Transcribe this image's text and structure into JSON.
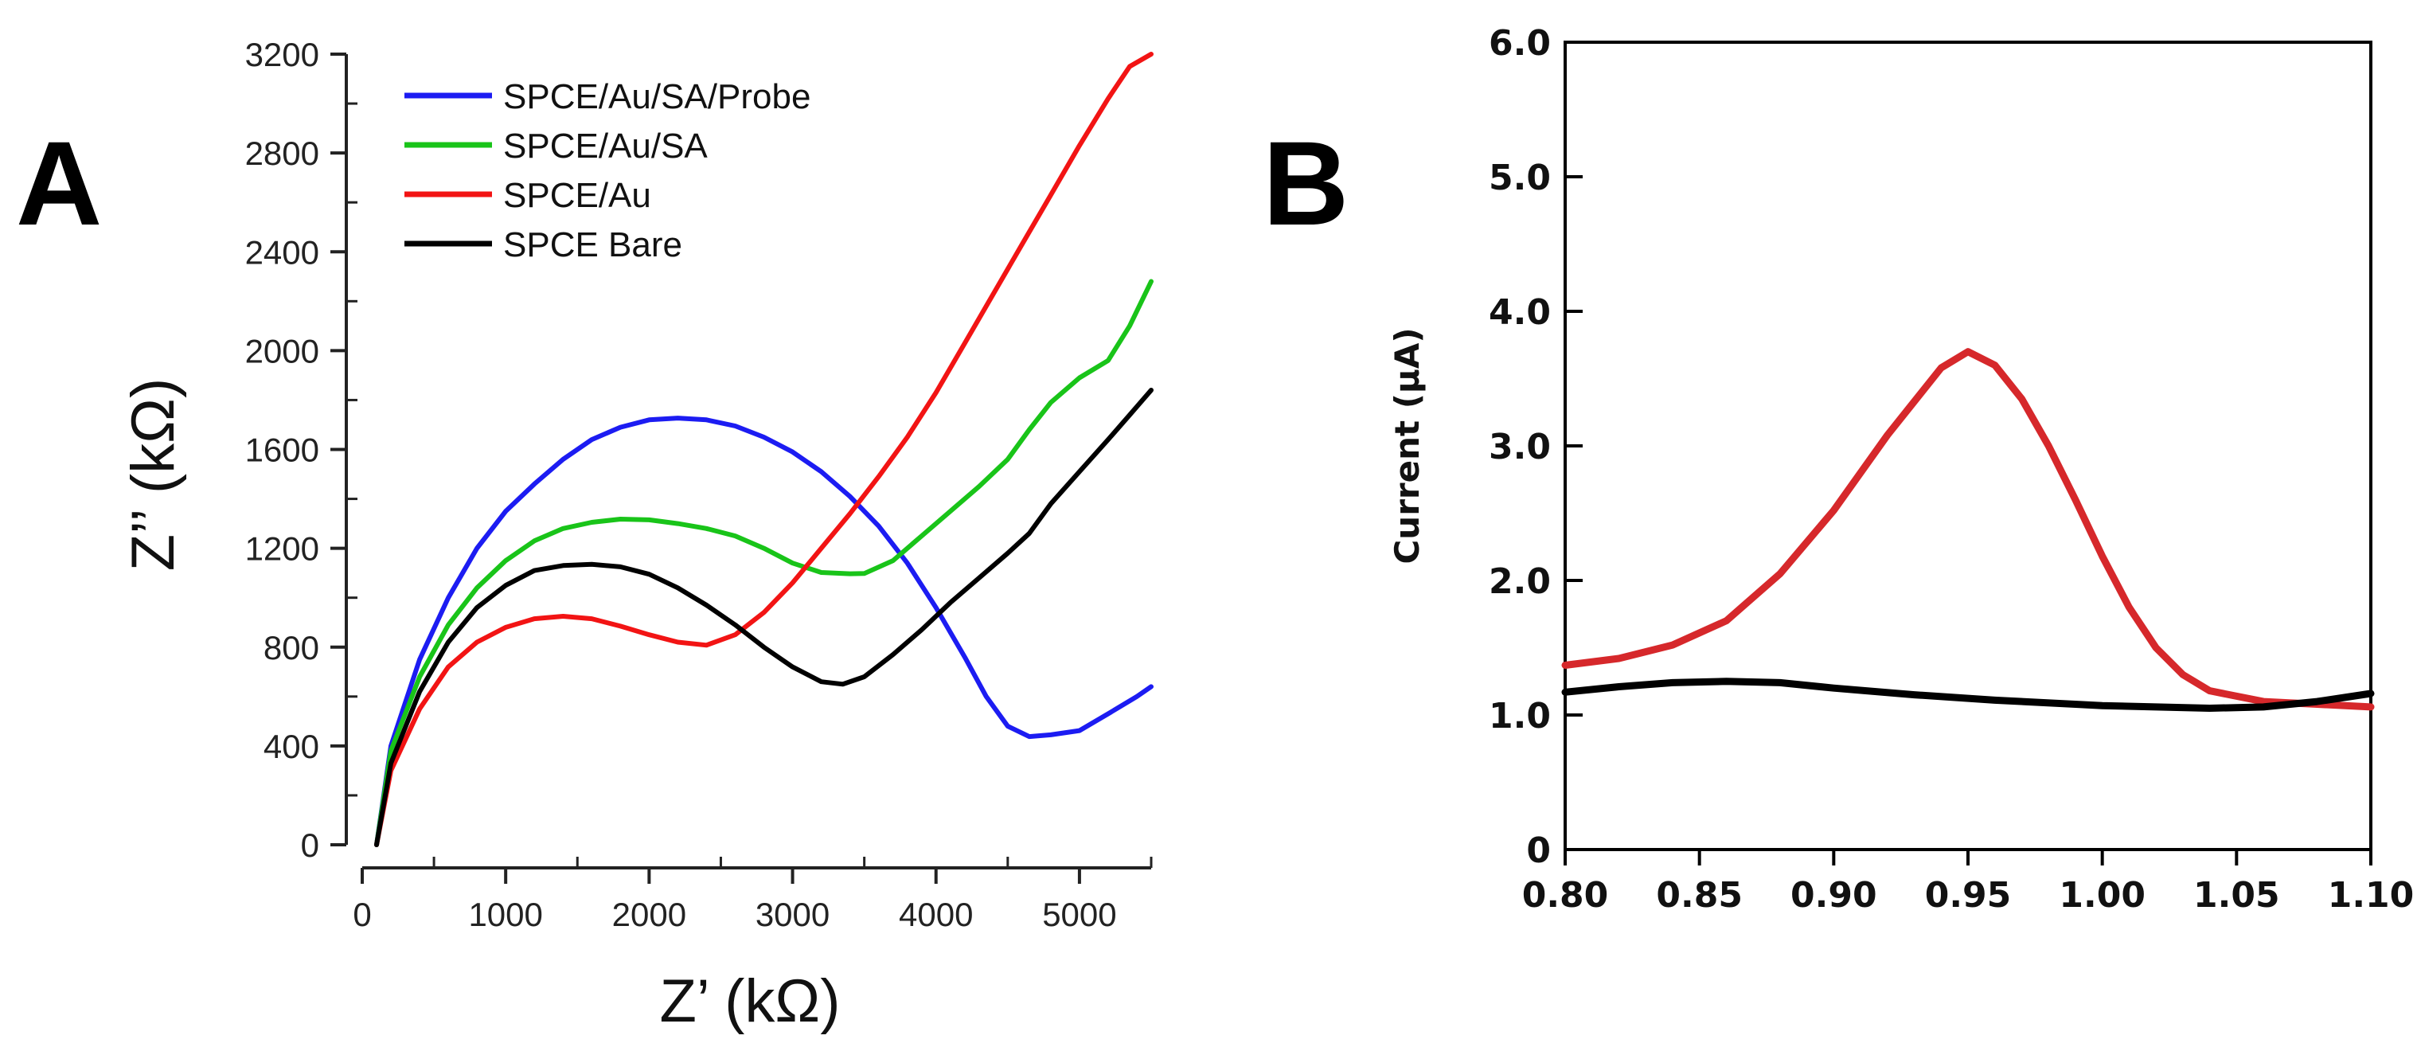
{
  "chart_data": [
    {
      "panel_label": "A",
      "type": "line",
      "title": "",
      "xlabel": "Z’ (kΩ)",
      "ylabel": "Z’’ (kΩ)",
      "xlim": [
        0,
        5500
      ],
      "ylim": [
        0,
        3200
      ],
      "x_ticks": [
        0,
        1000,
        2000,
        3000,
        4000,
        5000
      ],
      "x_tick_labels": [
        "0",
        "1000",
        "2000",
        "3000",
        "4000",
        "5000"
      ],
      "x_minor_step": 500,
      "y_ticks": [
        0,
        400,
        800,
        1200,
        1600,
        2000,
        2400,
        2800,
        3200
      ],
      "y_tick_labels": [
        "0",
        "400",
        "800",
        "1200",
        "1600",
        "2000",
        "2400",
        "2800",
        "3200"
      ],
      "y_minor_step": 200,
      "grid": false,
      "legend_position": "top-left",
      "series": [
        {
          "name": "SPCE/Au/SA/Probe",
          "color": "#1c1cf2",
          "points": [
            [
              100,
              0
            ],
            [
              200,
              400
            ],
            [
              400,
              750
            ],
            [
              600,
              1000
            ],
            [
              800,
              1200
            ],
            [
              1000,
              1350
            ],
            [
              1200,
              1460
            ],
            [
              1400,
              1560
            ],
            [
              1600,
              1640
            ],
            [
              1800,
              1690
            ],
            [
              2000,
              1720
            ],
            [
              2200,
              1727
            ],
            [
              2400,
              1720
            ],
            [
              2600,
              1695
            ],
            [
              2800,
              1650
            ],
            [
              3000,
              1590
            ],
            [
              3200,
              1510
            ],
            [
              3400,
              1410
            ],
            [
              3600,
              1290
            ],
            [
              3800,
              1140
            ],
            [
              4000,
              960
            ],
            [
              4200,
              760
            ],
            [
              4350,
              600
            ],
            [
              4500,
              480
            ],
            [
              4650,
              438
            ],
            [
              4800,
              445
            ],
            [
              5000,
              462
            ],
            [
              5200,
              530
            ],
            [
              5400,
              600
            ],
            [
              5500,
              640
            ]
          ]
        },
        {
          "name": "SPCE/Au/SA",
          "color": "#19c419",
          "points": [
            [
              100,
              0
            ],
            [
              200,
              380
            ],
            [
              400,
              680
            ],
            [
              600,
              890
            ],
            [
              800,
              1040
            ],
            [
              1000,
              1150
            ],
            [
              1200,
              1230
            ],
            [
              1400,
              1280
            ],
            [
              1600,
              1305
            ],
            [
              1800,
              1318
            ],
            [
              2000,
              1315
            ],
            [
              2200,
              1300
            ],
            [
              2400,
              1280
            ],
            [
              2600,
              1250
            ],
            [
              2800,
              1200
            ],
            [
              3000,
              1140
            ],
            [
              3200,
              1102
            ],
            [
              3400,
              1097
            ],
            [
              3500,
              1098
            ],
            [
              3700,
              1150
            ],
            [
              3900,
              1250
            ],
            [
              4100,
              1350
            ],
            [
              4300,
              1450
            ],
            [
              4500,
              1560
            ],
            [
              4650,
              1680
            ],
            [
              4800,
              1790
            ],
            [
              5000,
              1890
            ],
            [
              5200,
              1960
            ],
            [
              5350,
              2100
            ],
            [
              5500,
              2280
            ]
          ]
        },
        {
          "name": "SPCE/Au",
          "color": "#f21414",
          "points": [
            [
              100,
              0
            ],
            [
              200,
              300
            ],
            [
              400,
              550
            ],
            [
              600,
              720
            ],
            [
              800,
              820
            ],
            [
              1000,
              880
            ],
            [
              1200,
              915
            ],
            [
              1400,
              925
            ],
            [
              1600,
              915
            ],
            [
              1800,
              885
            ],
            [
              2000,
              850
            ],
            [
              2200,
              820
            ],
            [
              2400,
              808
            ],
            [
              2600,
              850
            ],
            [
              2800,
              940
            ],
            [
              3000,
              1060
            ],
            [
              3200,
              1200
            ],
            [
              3400,
              1340
            ],
            [
              3600,
              1490
            ],
            [
              3800,
              1650
            ],
            [
              4000,
              1830
            ],
            [
              4200,
              2030
            ],
            [
              4400,
              2230
            ],
            [
              4600,
              2430
            ],
            [
              4800,
              2630
            ],
            [
              5000,
              2830
            ],
            [
              5200,
              3020
            ],
            [
              5350,
              3150
            ],
            [
              5500,
              3200
            ]
          ]
        },
        {
          "name": "SPCE Bare",
          "color": "#000000",
          "points": [
            [
              100,
              0
            ],
            [
              200,
              330
            ],
            [
              400,
              620
            ],
            [
              600,
              820
            ],
            [
              800,
              960
            ],
            [
              1000,
              1050
            ],
            [
              1200,
              1110
            ],
            [
              1400,
              1130
            ],
            [
              1600,
              1135
            ],
            [
              1800,
              1125
            ],
            [
              2000,
              1095
            ],
            [
              2200,
              1040
            ],
            [
              2400,
              970
            ],
            [
              2600,
              890
            ],
            [
              2800,
              800
            ],
            [
              3000,
              720
            ],
            [
              3200,
              660
            ],
            [
              3350,
              650
            ],
            [
              3500,
              680
            ],
            [
              3700,
              770
            ],
            [
              3900,
              870
            ],
            [
              4100,
              980
            ],
            [
              4300,
              1080
            ],
            [
              4500,
              1180
            ],
            [
              4650,
              1260
            ],
            [
              4800,
              1380
            ],
            [
              5000,
              1510
            ],
            [
              5200,
              1640
            ],
            [
              5350,
              1740
            ],
            [
              5500,
              1840
            ]
          ]
        }
      ]
    },
    {
      "panel_label": "B",
      "type": "line",
      "title": "",
      "xlabel": "",
      "ylabel": "Current (µA)",
      "xlim": [
        0.8,
        1.1
      ],
      "ylim": [
        0,
        6.0
      ],
      "x_ticks": [
        0.8,
        0.85,
        0.9,
        0.95,
        1.0,
        1.05,
        1.1
      ],
      "x_tick_labels": [
        "0.80",
        "0.85",
        "0.90",
        "0.95",
        "1.00",
        "1.05",
        "1.10"
      ],
      "y_ticks": [
        0,
        1,
        2,
        3,
        4,
        5,
        6
      ],
      "y_tick_labels": [
        "0",
        "1.0",
        "2.0",
        "3.0",
        "4.0",
        "5.0",
        "6.0"
      ],
      "grid": false,
      "legend_position": "none",
      "series": [
        {
          "name": "red trace",
          "color": "#d6282b",
          "points": [
            [
              0.8,
              1.37
            ],
            [
              0.82,
              1.42
            ],
            [
              0.84,
              1.52
            ],
            [
              0.86,
              1.7
            ],
            [
              0.88,
              2.05
            ],
            [
              0.9,
              2.52
            ],
            [
              0.92,
              3.08
            ],
            [
              0.94,
              3.58
            ],
            [
              0.95,
              3.7
            ],
            [
              0.96,
              3.6
            ],
            [
              0.97,
              3.35
            ],
            [
              0.98,
              3.0
            ],
            [
              0.99,
              2.6
            ],
            [
              1.0,
              2.18
            ],
            [
              1.01,
              1.8
            ],
            [
              1.02,
              1.5
            ],
            [
              1.03,
              1.3
            ],
            [
              1.04,
              1.18
            ],
            [
              1.06,
              1.1
            ],
            [
              1.08,
              1.08
            ],
            [
              1.1,
              1.06
            ]
          ]
        },
        {
          "name": "black trace",
          "color": "#000000",
          "points": [
            [
              0.8,
              1.17
            ],
            [
              0.82,
              1.21
            ],
            [
              0.84,
              1.24
            ],
            [
              0.86,
              1.25
            ],
            [
              0.88,
              1.24
            ],
            [
              0.9,
              1.2
            ],
            [
              0.93,
              1.15
            ],
            [
              0.96,
              1.11
            ],
            [
              1.0,
              1.07
            ],
            [
              1.04,
              1.05
            ],
            [
              1.06,
              1.06
            ],
            [
              1.08,
              1.1
            ],
            [
              1.1,
              1.16
            ]
          ]
        }
      ]
    }
  ]
}
